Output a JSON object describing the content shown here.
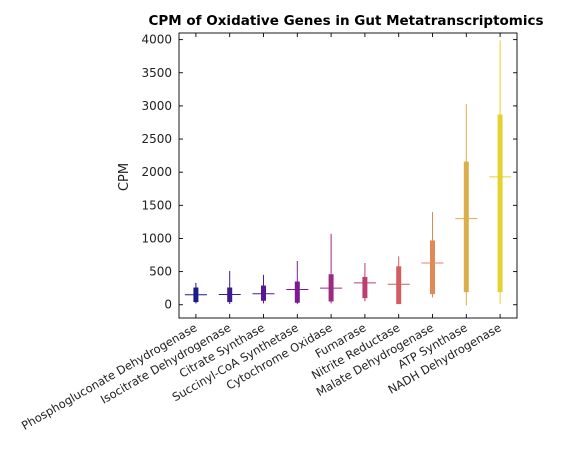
{
  "chart_data": {
    "type": "box",
    "title": "CPM of Oxidative Genes in Gut Metatranscriptomics",
    "xlabel": "",
    "ylabel": "CPM",
    "ylim": [
      -200,
      4100
    ],
    "yticks": [
      0,
      500,
      1000,
      1500,
      2000,
      2500,
      3000,
      3500,
      4000
    ],
    "grid": false,
    "legend": "none",
    "categories": [
      "Phosphogluconate Dehydrogenase",
      "Isocitrate Dehydrogenase",
      "Citrate Synthase",
      "Succinyl-CoA Synthetase",
      "Cytochrome Oxidase",
      "Fumarase",
      "Nitrite Reductase",
      "Malate Dehydrogenase",
      "ATP Synthase",
      "NADH Dehydrogenase"
    ],
    "boxes": [
      {
        "min": 20,
        "q1": 40,
        "median": 150,
        "q3": 260,
        "max": 330
      },
      {
        "min": 10,
        "q1": 40,
        "median": 155,
        "q3": 260,
        "max": 510
      },
      {
        "min": 20,
        "q1": 60,
        "median": 165,
        "q3": 290,
        "max": 450
      },
      {
        "min": 10,
        "q1": 30,
        "median": 230,
        "q3": 350,
        "max": 660
      },
      {
        "min": 20,
        "q1": 50,
        "median": 250,
        "q3": 460,
        "max": 1070
      },
      {
        "min": 50,
        "q1": 100,
        "median": 330,
        "q3": 420,
        "max": 630
      },
      {
        "min": 10,
        "q1": 10,
        "median": 310,
        "q3": 580,
        "max": 730
      },
      {
        "min": 110,
        "q1": 160,
        "median": 630,
        "q3": 970,
        "max": 1400
      },
      {
        "min": -10,
        "q1": 190,
        "median": 1300,
        "q3": 2160,
        "max": 3030
      },
      {
        "min": 10,
        "q1": 190,
        "median": 1930,
        "q3": 2870,
        "max": 3990
      }
    ],
    "colors": [
      "#1b1a8a",
      "#3e1a93",
      "#571896",
      "#7a1c8f",
      "#9d2a82",
      "#bc3f72",
      "#d25e62",
      "#e08a55",
      "#dcae4b",
      "#e4d231"
    ]
  }
}
